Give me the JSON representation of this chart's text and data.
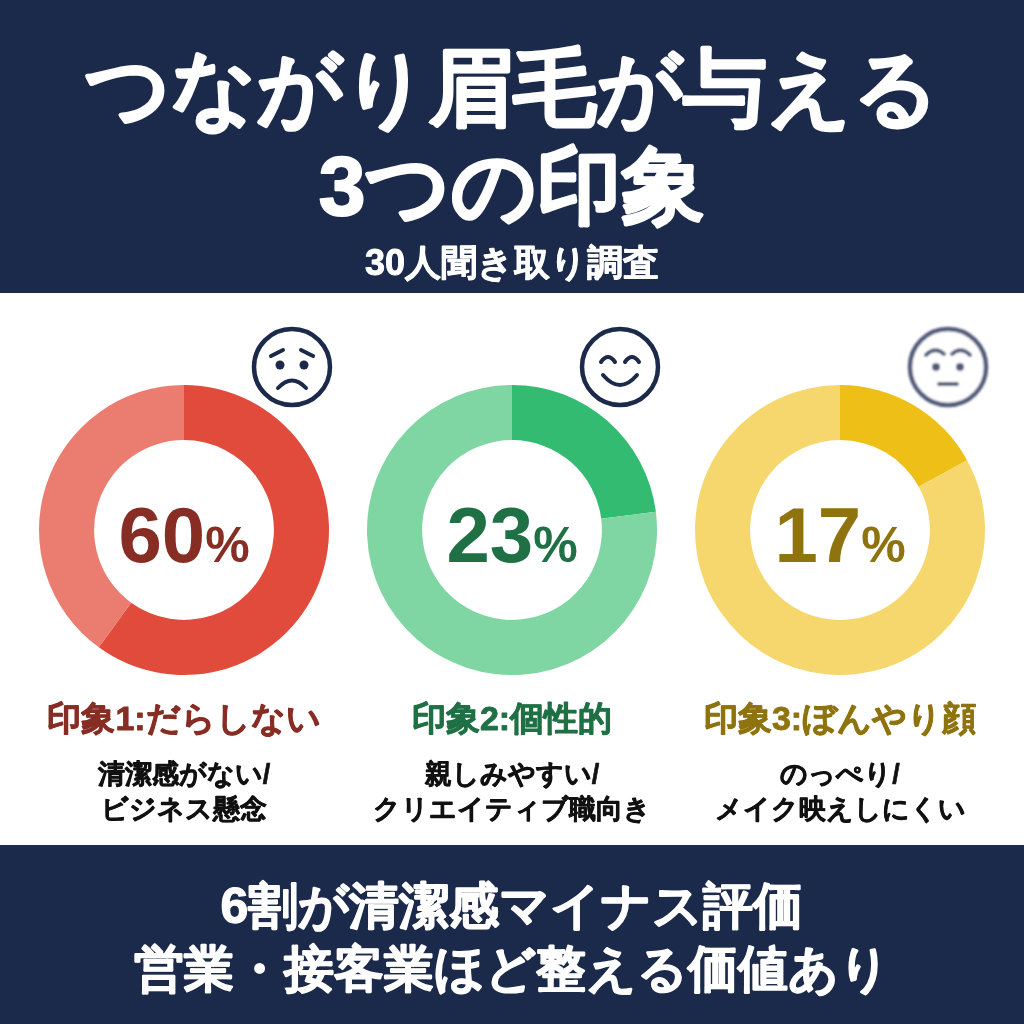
{
  "chart_data": [
    {
      "type": "other",
      "title": "つながり眉毛が与える\n3つの印象",
      "subtitle": "30人聞き取り調査"
    },
    {
      "type": "donut",
      "title": "印象1:だらしない",
      "subtitle": "清潔感がない/\nビジネス懸念",
      "categories": [
        null,
        null
      ],
      "values": [
        60,
        40
      ],
      "colors": [
        "#e14b3b",
        "#ea7d70"
      ],
      "annotations": [
        "60%"
      ]
    },
    {
      "type": "donut",
      "title": "印象2:個性的",
      "subtitle": "親しみやすい/\nクリエイティブ職向き",
      "categories": [
        null,
        null
      ],
      "values": [
        23,
        77
      ],
      "colors": [
        "#33bb72",
        "#7fd6a2"
      ],
      "annotations": [
        "23%"
      ]
    },
    {
      "type": "donut",
      "title": "印象3:ぼんやり顔",
      "subtitle": "のっぺり/\nメイク映えしにくい",
      "categories": [
        null,
        null
      ],
      "values": [
        17,
        83
      ],
      "colors": [
        "#eebf17",
        "#f5d76e"
      ],
      "annotations": [
        "17%"
      ]
    },
    {
      "type": "other",
      "annotations": [
        "6割が清潔感マイナス評価",
        "営業・接客業ほど整える価値あり"
      ]
    }
  ]
}
